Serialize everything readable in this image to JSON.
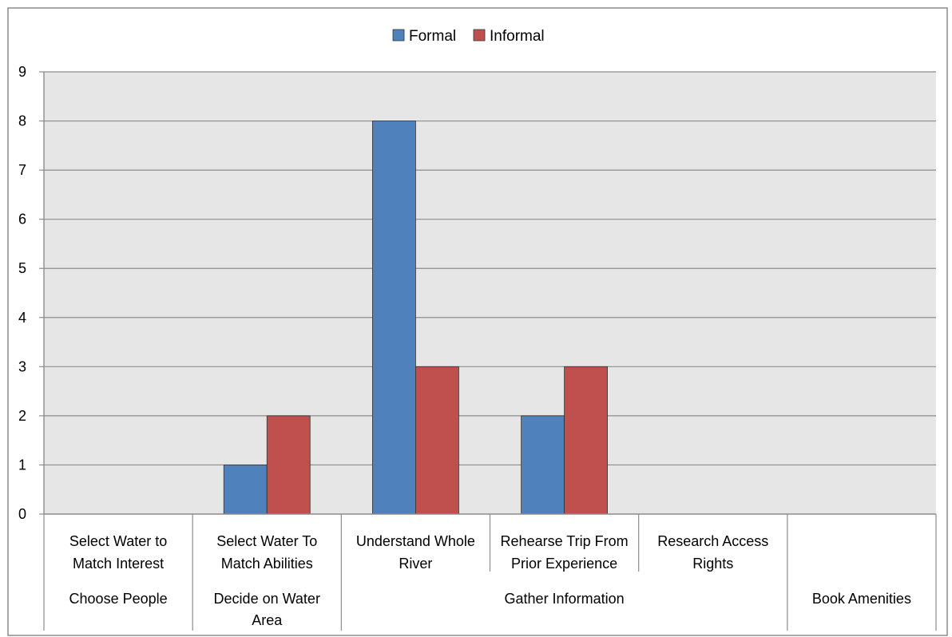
{
  "chart_data": {
    "type": "bar",
    "ylim": [
      0,
      9
    ],
    "yticks": [
      "0",
      "1",
      "2",
      "3",
      "4",
      "5",
      "6",
      "7",
      "8",
      "9"
    ],
    "grid": true,
    "legend_position": "top",
    "categories": [
      [
        "Select Water to",
        "Match Interest"
      ],
      [
        "Select Water To",
        "Match Abilities"
      ],
      [
        "Understand Whole",
        "River"
      ],
      [
        "Rehearse Trip From",
        "Prior Experience"
      ],
      [
        "Research Access",
        "Rights"
      ],
      [
        ""
      ]
    ],
    "groups": [
      {
        "label": [
          "Choose People"
        ],
        "span": [
          0,
          0
        ]
      },
      {
        "label": [
          "Decide on Water",
          "Area"
        ],
        "span": [
          1,
          1
        ]
      },
      {
        "label": [
          "Gather Information"
        ],
        "span": [
          2,
          4
        ]
      },
      {
        "label": [
          "Book Amenities"
        ],
        "span": [
          5,
          5
        ]
      }
    ],
    "series": [
      {
        "name": "Formal",
        "color": "#4F81BD",
        "values": [
          0,
          1,
          8,
          2,
          0,
          0
        ]
      },
      {
        "name": "Informal",
        "color": "#C0504D",
        "values": [
          0,
          2,
          3,
          3,
          0,
          0
        ]
      }
    ],
    "plot_background": "#E6E6E6"
  }
}
